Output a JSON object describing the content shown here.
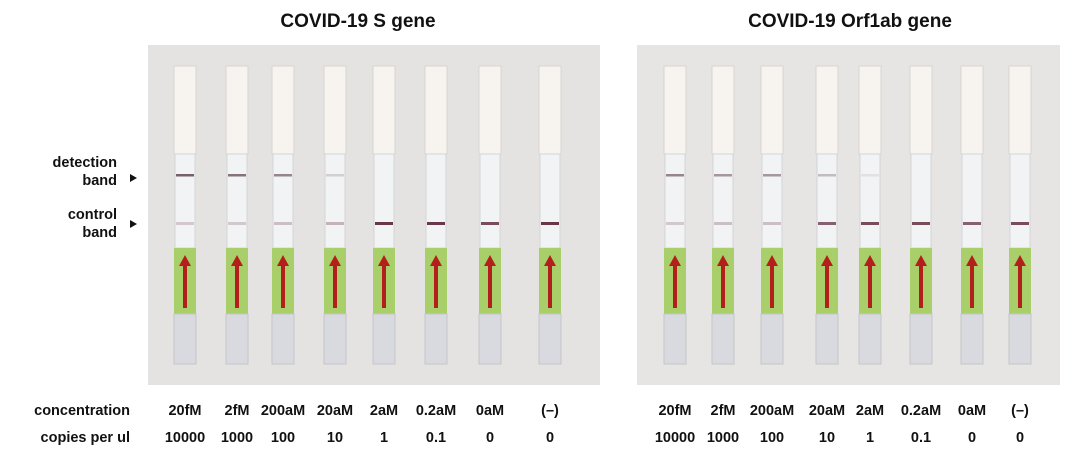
{
  "panels": [
    {
      "title": "COVID-19 S gene",
      "concentrations": [
        "20fM",
        "2fM",
        "200aM",
        "20aM",
        "2aM",
        "0.2aM",
        "0aM",
        "(–)"
      ],
      "copies": [
        10000,
        1000,
        100,
        10,
        1,
        0.1,
        0,
        0
      ]
    },
    {
      "title": "COVID-19 Orf1ab gene",
      "concentrations": [
        "20fM",
        "2fM",
        "200aM",
        "20aM",
        "2aM",
        "0.2aM",
        "0aM",
        "(–)"
      ],
      "copies": [
        10000,
        1000,
        100,
        10,
        1,
        0.1,
        0,
        0
      ]
    }
  ],
  "band_labels": {
    "detection": [
      "detection",
      "band"
    ],
    "control": [
      "control",
      "band"
    ]
  },
  "row_labels": {
    "concentration": "concentration",
    "copies": "copies per ul"
  }
}
